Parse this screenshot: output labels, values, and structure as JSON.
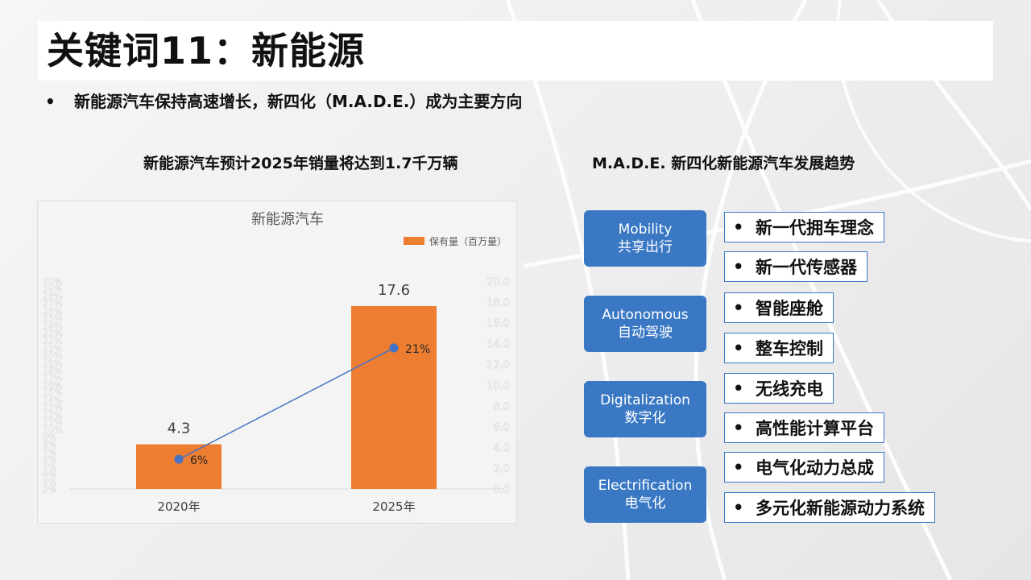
{
  "title": "关键词11：新能源",
  "bullet": "新能源汽车保持高速增长，新四化（M.A.D.E.）成为主要方向",
  "bullet_marker": "•",
  "left_heading": "新能源汽车预计2025年销量将达到1.7千万辆",
  "right_heading": "M.A.D.E. 新四化新能源汽车发展趋势",
  "colors": {
    "bar": "#ed7d31",
    "line": "#4472c4",
    "category": "#3a78c4"
  },
  "chart_data": {
    "type": "bar",
    "title": "新能源汽车",
    "categories": [
      "2020年",
      "2025年"
    ],
    "series": [
      {
        "name": "保有量（百万量）",
        "type": "bar",
        "axis": "right",
        "values": [
          4.3,
          17.6
        ],
        "labels": [
          "4.3",
          "17.6"
        ]
      },
      {
        "type": "line",
        "axis": "left",
        "values": [
          6,
          21
        ],
        "labels": [
          "6%",
          "21%"
        ]
      }
    ],
    "y_right": {
      "range": [
        0,
        20
      ],
      "ticks": [
        "0.0",
        "2.0",
        "4.0",
        "6.0",
        "8.0",
        "10.0",
        "12.0",
        "14.0",
        "16.0",
        "18.0",
        "20.0"
      ]
    },
    "y_left": {
      "range": [
        2,
        30
      ],
      "ticks": [
        "2%",
        "3%",
        "4%",
        "5%",
        "6%",
        "7%",
        "8%",
        "9%",
        "10%",
        "11%",
        "12%",
        "13%",
        "14%",
        "15%",
        "16%",
        "17%",
        "18%",
        "19%",
        "20%",
        "21%",
        "22%",
        "23%",
        "24%",
        "25%",
        "26%",
        "27%",
        "28%",
        "29%",
        "30%"
      ]
    },
    "legend": "top-right",
    "grid": false
  },
  "made": [
    {
      "en": "Mobility",
      "zh": "共享出行",
      "items": [
        "新一代拥车理念",
        "新一代传感器"
      ]
    },
    {
      "en": "Autonomous",
      "zh": "自动驾驶",
      "items": [
        "智能座舱",
        "整车控制"
      ]
    },
    {
      "en": "Digitalization",
      "zh": "数字化",
      "items": [
        "无线充电",
        "高性能计算平台"
      ]
    },
    {
      "en": "Electrification",
      "zh": "电气化",
      "items": [
        "电气化动力总成",
        "多元化新能源动力系统"
      ]
    }
  ]
}
